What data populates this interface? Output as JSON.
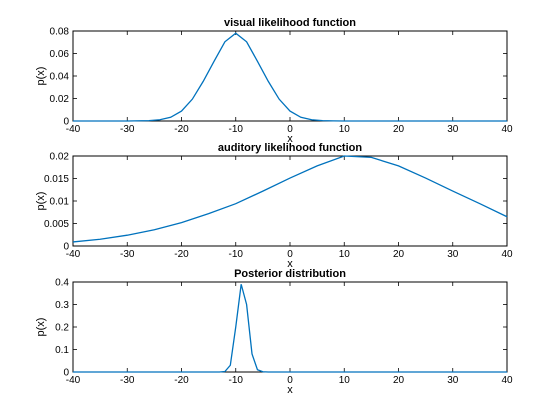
{
  "colors": {
    "line": "#0072BD",
    "axis": "#000000",
    "background": "#ffffff"
  },
  "chart_data": [
    {
      "type": "line",
      "title": "visual likelihood function",
      "xlabel": "x",
      "ylabel": "p(x)",
      "xlim": [
        -40,
        40
      ],
      "ylim": [
        0,
        0.08
      ],
      "xticks": [
        -40,
        -30,
        -20,
        -10,
        0,
        10,
        20,
        30,
        40
      ],
      "yticks": [
        0,
        0.02,
        0.04,
        0.06,
        0.08
      ],
      "yticklabels": [
        "0",
        "0.02",
        "0.04",
        "0.06",
        "0.08"
      ],
      "grid": false,
      "series": [
        {
          "x": [
            -40,
            -30,
            -26,
            -24,
            -22,
            -20,
            -18,
            -16,
            -14,
            -12,
            -10,
            -8,
            -6,
            -4,
            -2,
            0,
            2,
            4,
            6,
            8,
            10,
            12,
            20,
            30,
            40
          ],
          "y": [
            0,
            0,
            0.0003,
            0.0011,
            0.0033,
            0.0088,
            0.0194,
            0.0352,
            0.0531,
            0.0704,
            0.078,
            0.0704,
            0.0531,
            0.0352,
            0.0194,
            0.0088,
            0.0033,
            0.0011,
            0.0003,
            0.0001,
            0,
            0,
            0,
            0,
            0
          ]
        }
      ]
    },
    {
      "type": "line",
      "title": "auditory likelihood function",
      "xlabel": "x",
      "ylabel": "p(x)",
      "xlim": [
        -40,
        40
      ],
      "ylim": [
        0,
        0.02
      ],
      "xticks": [
        -40,
        -30,
        -20,
        -10,
        0,
        10,
        20,
        30,
        40
      ],
      "yticks": [
        0,
        0.005,
        0.01,
        0.015,
        0.02
      ],
      "yticklabels": [
        "0",
        "0.005",
        "0.01",
        "0.015",
        "0.02"
      ],
      "grid": false,
      "series": [
        {
          "x": [
            -40,
            -35,
            -30,
            -25,
            -20,
            -15,
            -10,
            -5,
            0,
            5,
            10,
            15,
            20,
            25,
            30,
            35,
            40
          ],
          "y": [
            0.0009,
            0.0015,
            0.0024,
            0.0036,
            0.0052,
            0.0072,
            0.0094,
            0.0122,
            0.0151,
            0.0178,
            0.02,
            0.0197,
            0.0178,
            0.0151,
            0.0122,
            0.0094,
            0.0065
          ]
        }
      ]
    },
    {
      "type": "line",
      "title": "Posterior distribution",
      "xlabel": "x",
      "ylabel": "p(x)",
      "xlim": [
        -40,
        40
      ],
      "ylim": [
        0,
        0.4
      ],
      "xticks": [
        -40,
        -30,
        -20,
        -10,
        0,
        10,
        20,
        30,
        40
      ],
      "yticks": [
        0,
        0.1,
        0.2,
        0.3,
        0.4
      ],
      "yticklabels": [
        "0",
        "0.1",
        "0.2",
        "0.3",
        "0.4"
      ],
      "grid": false,
      "series": [
        {
          "x": [
            -40,
            -13,
            -12,
            -11,
            -10,
            -9,
            -8,
            -7,
            -6,
            -5,
            -4,
            40
          ],
          "y": [
            0,
            0,
            0.002,
            0.03,
            0.2,
            0.39,
            0.3,
            0.08,
            0.01,
            0.001,
            0,
            0
          ]
        }
      ]
    }
  ]
}
